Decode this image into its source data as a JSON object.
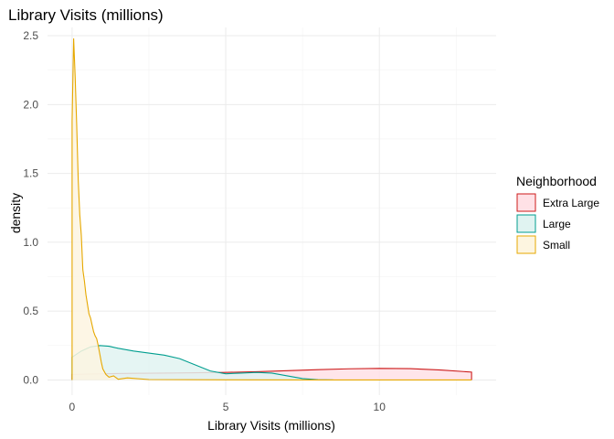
{
  "chart_data": {
    "type": "area",
    "title": "Library Visits (millions)",
    "xlabel": "Library Visits (millions)",
    "ylabel": "density",
    "xlim": [
      -0.8,
      13.8
    ],
    "ylim": [
      -0.11,
      2.56
    ],
    "x_ticks": [
      0,
      5,
      10
    ],
    "x_tick_labels": [
      "0",
      "5",
      "10"
    ],
    "y_ticks": [
      0.0,
      0.5,
      1.0,
      1.5,
      2.0,
      2.5
    ],
    "y_tick_labels": [
      "0.0",
      "0.5",
      "1.0",
      "1.5",
      "2.0",
      "2.5"
    ],
    "grid": true,
    "legend": {
      "title": "Neighborhood",
      "position": "right"
    },
    "series": [
      {
        "name": "Extra Large",
        "color": "#CC1A1A",
        "fill": "#FFE1E6",
        "x": [
          0,
          1,
          2,
          3,
          4,
          5,
          6,
          7,
          8,
          9,
          10,
          11,
          12,
          13
        ],
        "y": [
          0.04,
          0.045,
          0.048,
          0.05,
          0.052,
          0.055,
          0.06,
          0.067,
          0.075,
          0.081,
          0.084,
          0.082,
          0.072,
          0.057
        ]
      },
      {
        "name": "Large",
        "color": "#009E8F",
        "fill": "#E0F3F1",
        "x": [
          0,
          0.3,
          0.6,
          0.9,
          1.2,
          1.5,
          2,
          2.5,
          3,
          3.5,
          4,
          4.5,
          5,
          5.5,
          6,
          6.5,
          7,
          7.5,
          8,
          8.5
        ],
        "y": [
          0.165,
          0.21,
          0.24,
          0.25,
          0.245,
          0.23,
          0.21,
          0.195,
          0.18,
          0.155,
          0.11,
          0.065,
          0.045,
          0.05,
          0.055,
          0.05,
          0.03,
          0.01,
          0.002,
          0.0
        ]
      },
      {
        "name": "Small",
        "color": "#E6A800",
        "fill": "#FDF5E0",
        "x": [
          0,
          0.05,
          0.1,
          0.15,
          0.2,
          0.25,
          0.3,
          0.35,
          0.4,
          0.45,
          0.5,
          0.55,
          0.6,
          0.65,
          0.7,
          0.75,
          0.8,
          0.85,
          0.9,
          0.95,
          1.0,
          1.1,
          1.2,
          1.35,
          1.5,
          1.8,
          2.5,
          5,
          8,
          13
        ],
        "y": [
          1.88,
          2.48,
          2.2,
          1.85,
          1.45,
          1.2,
          1.05,
          0.8,
          0.72,
          0.62,
          0.55,
          0.48,
          0.45,
          0.4,
          0.35,
          0.32,
          0.3,
          0.25,
          0.19,
          0.13,
          0.08,
          0.04,
          0.02,
          0.03,
          0.005,
          0.015,
          0.003,
          0.001,
          0.0,
          0.0
        ]
      }
    ]
  }
}
